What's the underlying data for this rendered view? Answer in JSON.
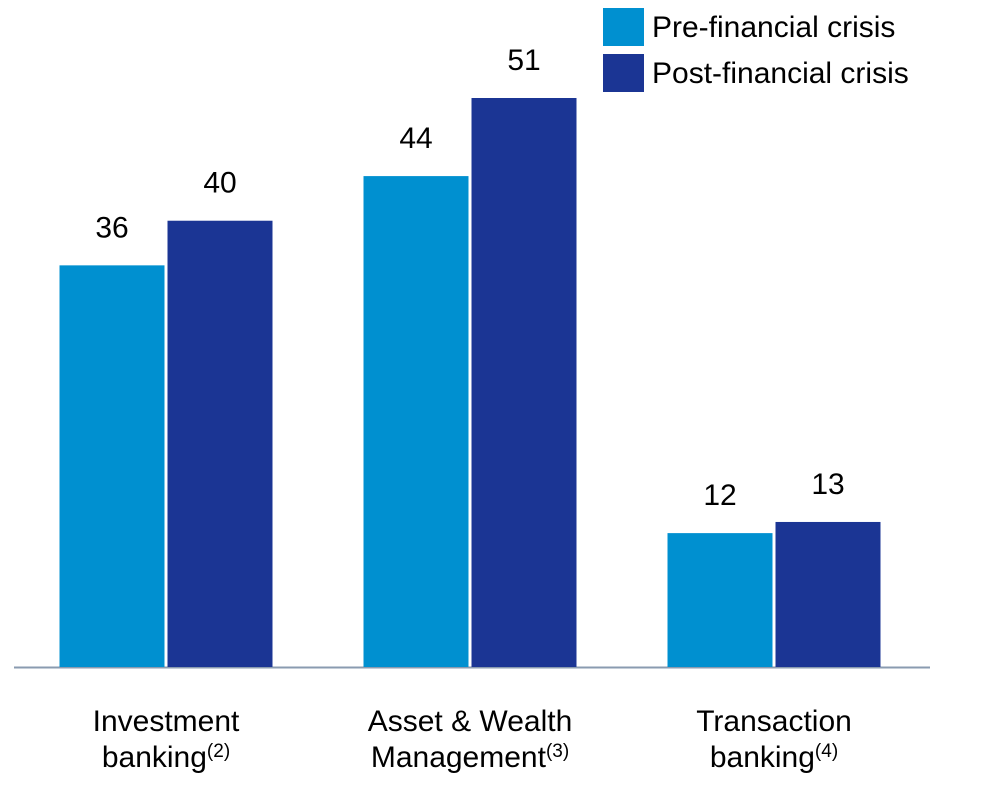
{
  "chart_data": {
    "type": "bar",
    "categories": [
      "Investment banking",
      "Asset & Wealth Management",
      "Transaction banking"
    ],
    "category_notes": [
      "(2)",
      "(3)",
      "(4)"
    ],
    "series": [
      {
        "name": "Pre-financial crisis",
        "color": "#0090d0",
        "values": [
          36,
          44,
          12
        ]
      },
      {
        "name": "Post-financial crisis",
        "color": "#1b3594",
        "values": [
          40,
          51,
          13
        ]
      }
    ],
    "legend": "top-right"
  }
}
